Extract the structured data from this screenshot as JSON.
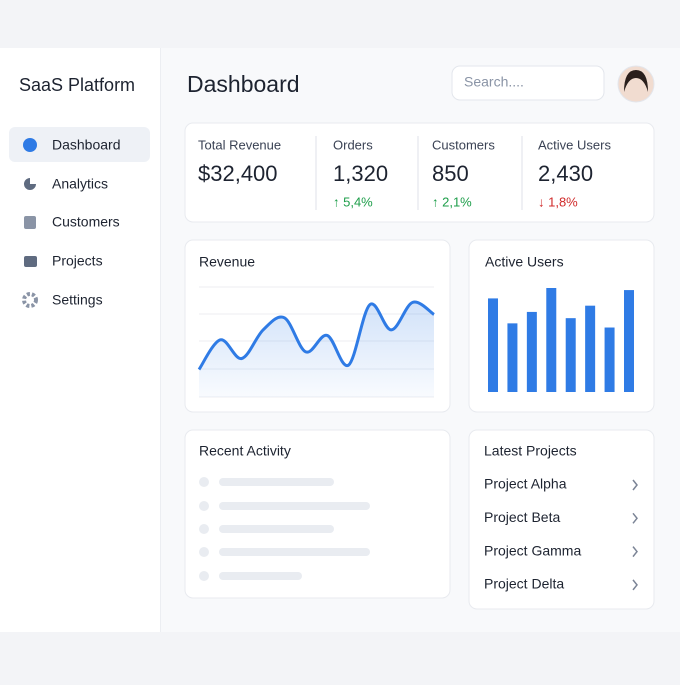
{
  "sidebar": {
    "title": "SaaS Platform",
    "nav": [
      "Dashboard",
      "Analytics",
      "Customers",
      "Projects",
      "Settings"
    ]
  },
  "header": {
    "title": "Dashboard",
    "search_placeholder": "Search...."
  },
  "stats": [
    {
      "label": "Total Revenue",
      "value": "$32,400"
    },
    {
      "label": "Orders",
      "value": "1,320",
      "change": "↑ 5,4%",
      "color": "#1e9e4a"
    },
    {
      "label": "Customers",
      "value": "850",
      "change": "↑ 2,1%",
      "color": "#1e9e4a"
    },
    {
      "label": "Active Users",
      "value": "2,430",
      "change": "↓ 1,8%",
      "color": "#d02a2a"
    }
  ],
  "revenue_chart": {
    "type": "line",
    "title": "Revenue",
    "values": [
      25,
      52,
      35,
      61,
      72,
      41,
      56,
      29,
      84,
      61,
      86,
      75
    ],
    "ylim": [
      0,
      100
    ],
    "color": "#2f7be5"
  },
  "active_users_chart": {
    "type": "bar",
    "title": "Active Users",
    "values": [
      90,
      66,
      77,
      100,
      71,
      83,
      62,
      98
    ],
    "ylim": [
      0,
      100
    ],
    "color": "#2f7be5"
  },
  "recent_activity": {
    "title": "Recent Activity"
  },
  "latest_projects": {
    "title": "Latest Projects",
    "items": [
      "Project Alpha",
      "Project Beta",
      "Project Gamma",
      "Project Delta"
    ]
  }
}
